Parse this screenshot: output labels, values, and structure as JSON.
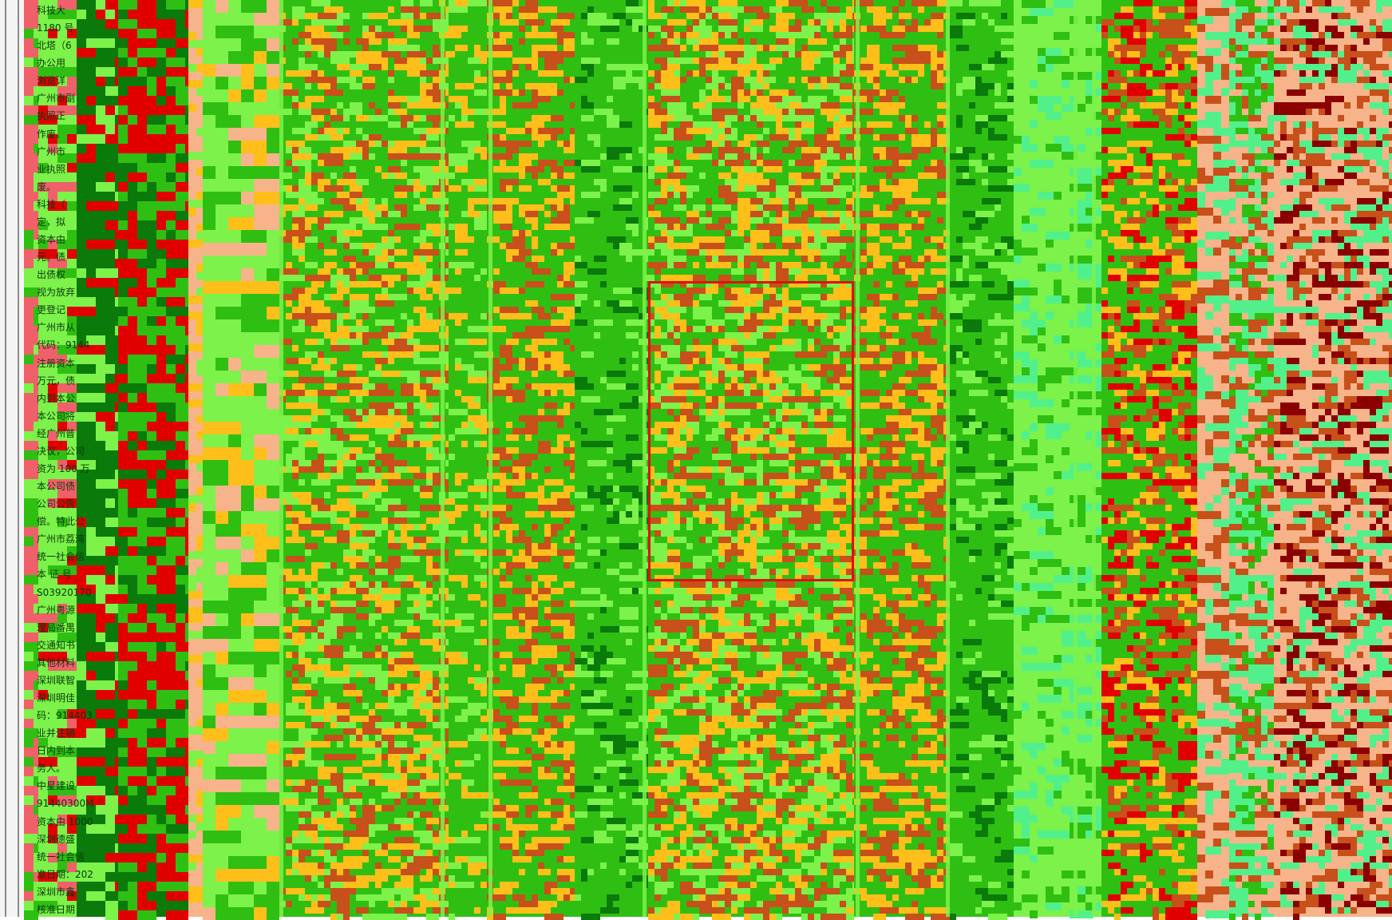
{
  "page": {
    "title": "",
    "palette": {
      "lime": "#7cf24a",
      "green": "#2fbf12",
      "dark_green": "#0a7a0a",
      "orange": "#ffbf1a",
      "rust": "#c8501a",
      "pink": "#f0606a",
      "red": "#e00000",
      "peach": "#f7b48a",
      "maroon": "#8b0000",
      "mint": "#52f08a"
    }
  },
  "document": {
    "text_lines": [
      "科技大",
      "1180 号",
      "北塔（6",
      "办公用",
      "浏览详",
      "广州市副",
      "执照正",
      "作废。",
      "广州市",
      "业执照",
      "废。",
      "科技（",
      "定，拟",
      "资本由",
      "元。债",
      "出债权",
      "视为放弃",
      "更登记",
      "广州市从",
      "代码：9144",
      "注册资本",
      "万元，债",
      "内到本公",
      "本公司将",
      "经广州普",
      "决议，公司",
      "资为 100 万",
      "本公司债",
      "公司公告",
      "偿。特此公",
      "广州市荔湾",
      "统一社会信",
      "本 证 号",
      "S03920170",
      "广州粤源",
      "理局番禺",
      "交通知书",
      "其他材料",
      "深圳联智",
      "深圳明佳",
      "码：914403",
      "业并注销",
      "日内到本",
      "务人。",
      "中星建设",
      "91440300M",
      "资本由 1000",
      "深圳德盛",
      "统一社会信",
      "准日期：202",
      "深圳市鑫",
      "核准日期"
    ]
  }
}
